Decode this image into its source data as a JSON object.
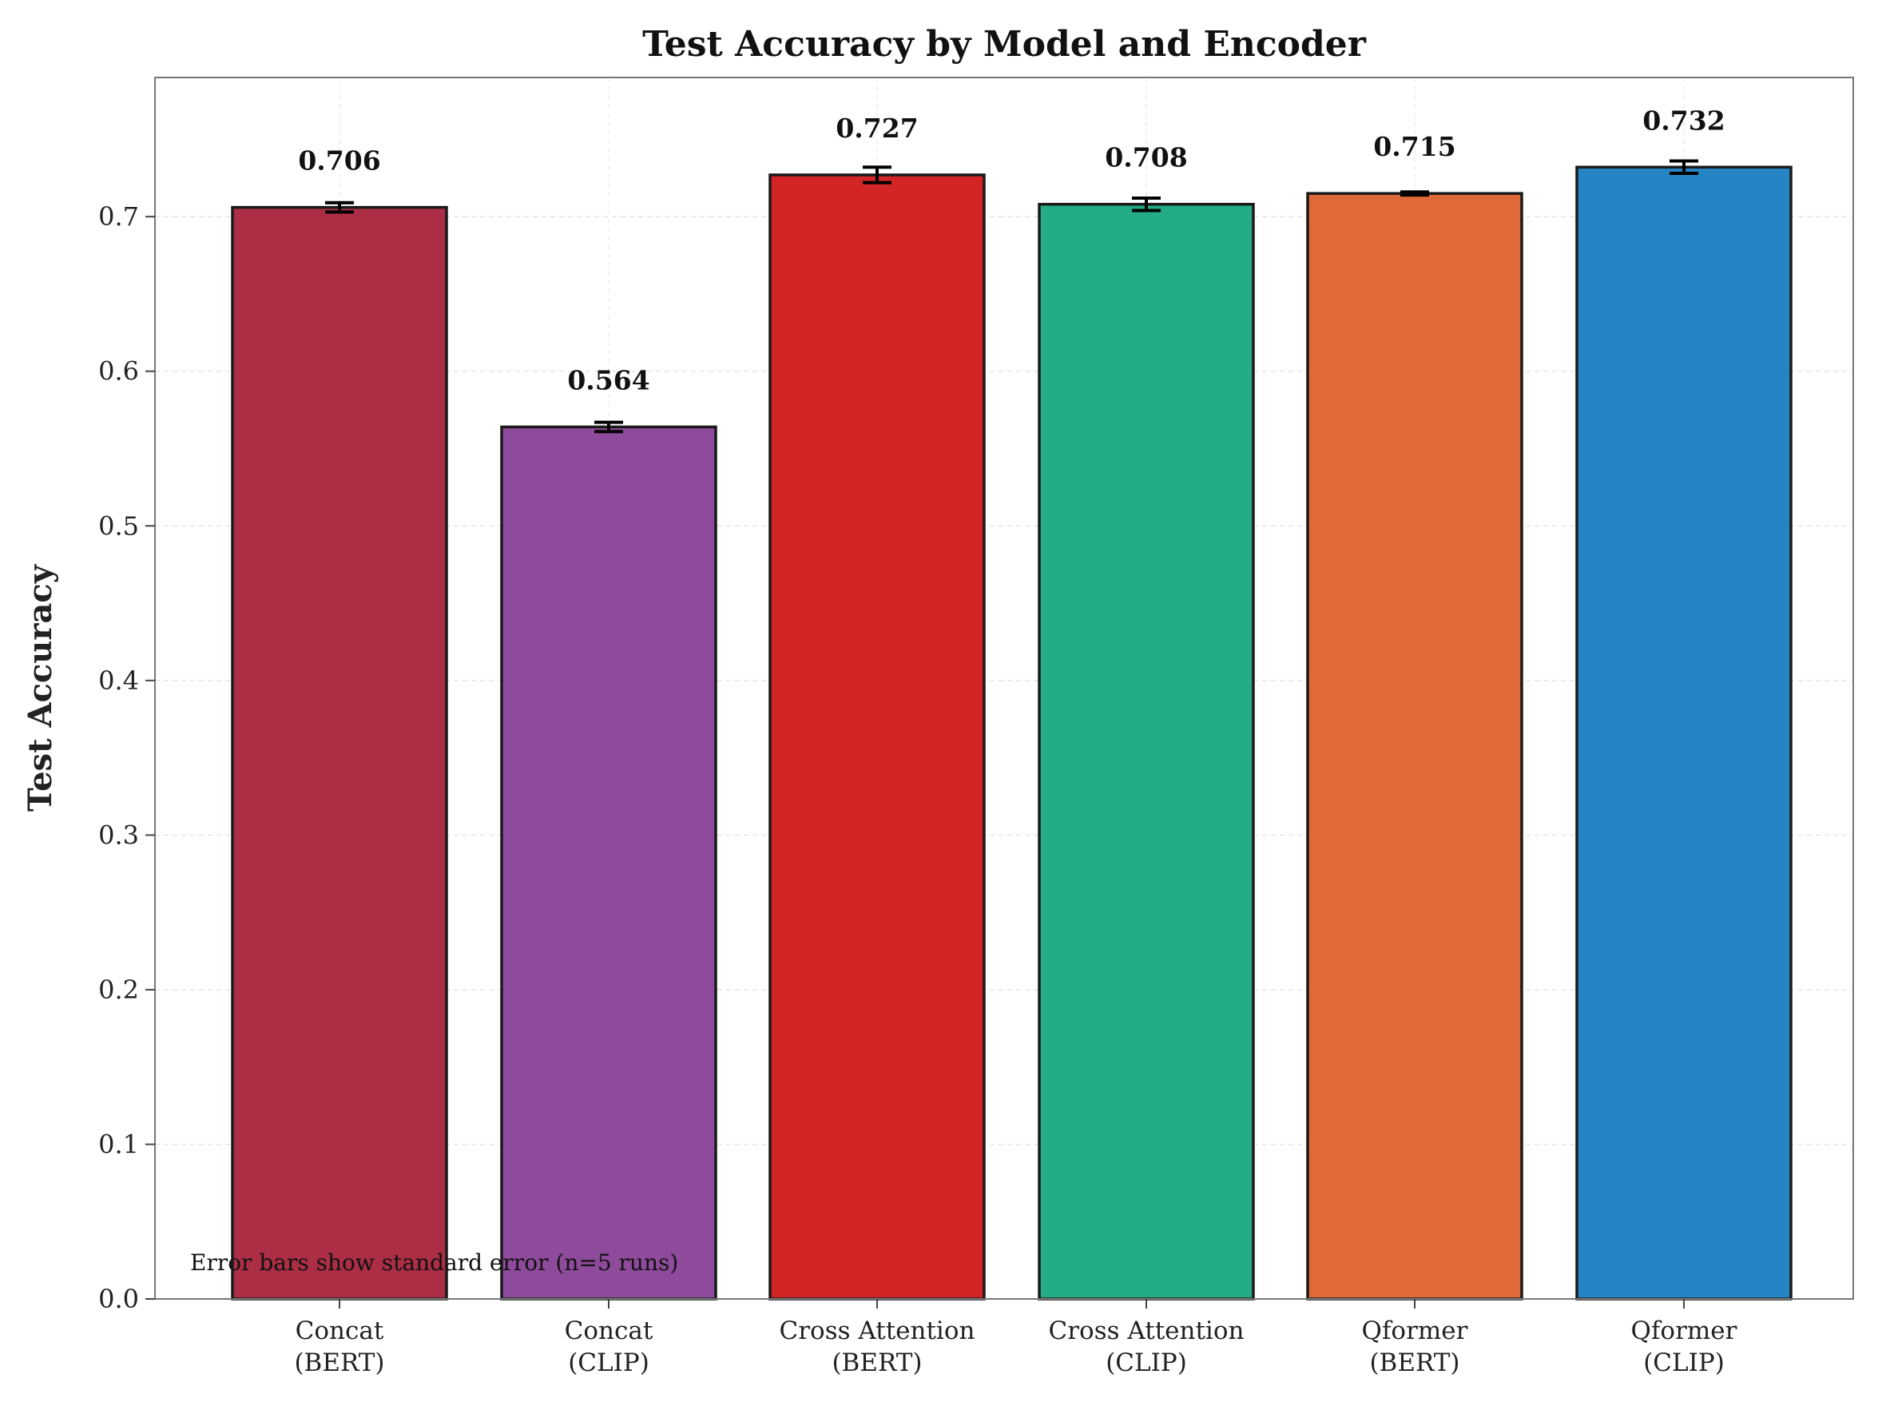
{
  "chart_data": {
    "type": "bar",
    "title": "Test Accuracy by Model and Encoder",
    "xlabel": "",
    "ylabel": "Test Accuracy",
    "ylim": [
      0,
      0.79
    ],
    "yticks": [
      "0.0",
      "0.1",
      "0.2",
      "0.3",
      "0.4",
      "0.5",
      "0.6",
      "0.7"
    ],
    "grid": true,
    "categories": [
      [
        "Concat",
        "(BERT)"
      ],
      [
        "Concat",
        "(CLIP)"
      ],
      [
        "Cross Attention",
        "(BERT)"
      ],
      [
        "Cross Attention",
        "(CLIP)"
      ],
      [
        "Qformer",
        "(BERT)"
      ],
      [
        "Qformer",
        "(CLIP)"
      ]
    ],
    "values": [
      0.706,
      0.564,
      0.727,
      0.708,
      0.715,
      0.732
    ],
    "value_labels": [
      "0.706",
      "0.564",
      "0.727",
      "0.708",
      "0.715",
      "0.732"
    ],
    "errors": [
      0.003,
      0.003,
      0.005,
      0.004,
      0.001,
      0.004
    ],
    "colors": [
      "#ab2e45",
      "#8e4b9b",
      "#d32426",
      "#24ac87",
      "#e0693a",
      "#2585c4"
    ],
    "annotation": "Error bars show standard error (n=5 runs)"
  }
}
